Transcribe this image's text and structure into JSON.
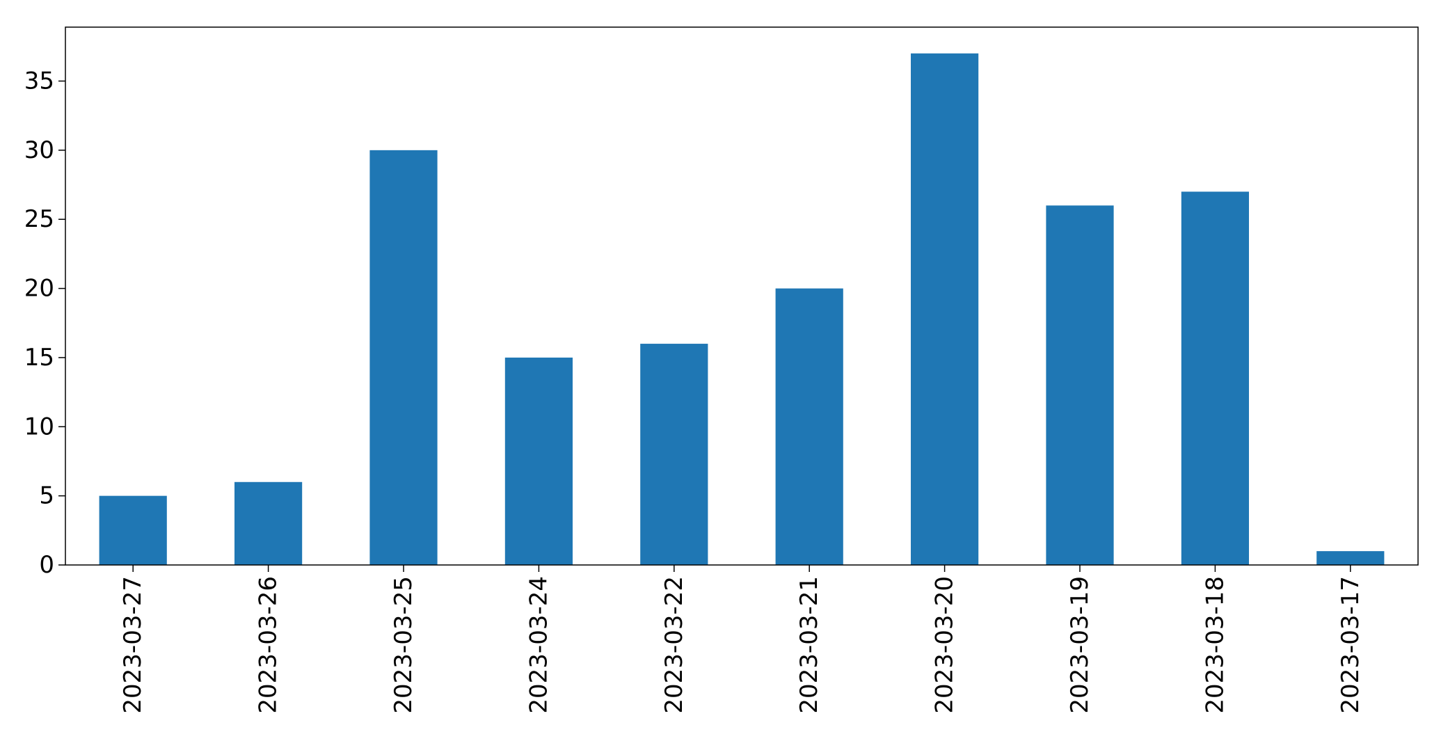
{
  "chart_data": {
    "type": "bar",
    "title": "",
    "xlabel": "",
    "ylabel": "",
    "categories": [
      "2023-03-27",
      "2023-03-26",
      "2023-03-25",
      "2023-03-24",
      "2023-03-22",
      "2023-03-21",
      "2023-03-20",
      "2023-03-19",
      "2023-03-18",
      "2023-03-17"
    ],
    "values": [
      5,
      6,
      30,
      15,
      16,
      20,
      37,
      26,
      27,
      1
    ],
    "ylim": [
      0,
      38.9
    ],
    "yticks": [
      0,
      5,
      10,
      15,
      20,
      25,
      30,
      35
    ],
    "bar_color": "#1f77b4",
    "grid": false,
    "legend": "none"
  }
}
